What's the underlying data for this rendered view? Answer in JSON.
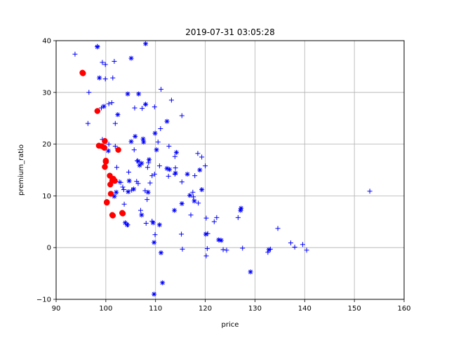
{
  "chart_data": {
    "type": "scatter",
    "title": "2019-07-31 03:05:28",
    "xlabel": "price",
    "ylabel": "premium_ratio",
    "xlim": [
      90,
      160
    ],
    "ylim": [
      -10,
      40
    ],
    "xticks": [
      90,
      100,
      110,
      120,
      130,
      140,
      150,
      160
    ],
    "yticks": [
      -10,
      0,
      10,
      20,
      30,
      40
    ],
    "xtick_labels": [
      "90",
      "100",
      "110",
      "120",
      "130",
      "140",
      "150",
      "160"
    ],
    "ytick_labels": [
      "−10",
      "0",
      "10",
      "20",
      "30",
      "40"
    ],
    "grid": true,
    "legend": false,
    "series": [
      {
        "marker": "plus",
        "color": "#0000ff",
        "points": [
          [
            93.8,
            37.4
          ],
          [
            96.6,
            30.0
          ],
          [
            96.4,
            24.0
          ],
          [
            98.3,
            38.9
          ],
          [
            99.3,
            35.8
          ],
          [
            99.9,
            35.4
          ],
          [
            99.9,
            32.6
          ],
          [
            99.1,
            27.0
          ],
          [
            99.3,
            20.9
          ],
          [
            100.6,
            27.8
          ],
          [
            101.2,
            28.0
          ],
          [
            101.4,
            32.8
          ],
          [
            101.7,
            36.0
          ],
          [
            101.9,
            24.0
          ],
          [
            100.6,
            20.0
          ],
          [
            101.9,
            19.6
          ],
          [
            102.2,
            15.5
          ],
          [
            103.0,
            12.6
          ],
          [
            103.6,
            11.2
          ],
          [
            104.6,
            14.6
          ],
          [
            105.7,
            18.9
          ],
          [
            106.3,
            16.8
          ],
          [
            106.2,
            12.8
          ],
          [
            105.8,
            27.0
          ],
          [
            107.3,
            26.9
          ],
          [
            108.0,
            27.7
          ],
          [
            109.8,
            27.2
          ],
          [
            108.6,
            16.4
          ],
          [
            108.4,
            15.5
          ],
          [
            107.9,
            11.0
          ],
          [
            107.0,
            7.2
          ],
          [
            108.1,
            4.7
          ],
          [
            109.3,
            13.9
          ],
          [
            109.8,
            14.2
          ],
          [
            108.9,
            12.5
          ],
          [
            108.3,
            9.3
          ],
          [
            109.3,
            5.1
          ],
          [
            109.9,
            2.5
          ],
          [
            110.8,
            15.8
          ],
          [
            110.5,
            20.4
          ],
          [
            111.0,
            23.0
          ],
          [
            111.1,
            30.6
          ],
          [
            112.7,
            19.6
          ],
          [
            112.6,
            13.8
          ],
          [
            113.2,
            28.5
          ],
          [
            115.3,
            25.5
          ],
          [
            113.9,
            17.6
          ],
          [
            113.9,
            14.2
          ],
          [
            114.0,
            15.4
          ],
          [
            115.3,
            12.7
          ],
          [
            115.2,
            2.6
          ],
          [
            115.4,
            -0.3
          ],
          [
            117.1,
            6.3
          ],
          [
            117.6,
            9.8
          ],
          [
            117.5,
            10.7
          ],
          [
            117.9,
            13.9
          ],
          [
            118.5,
            18.2
          ],
          [
            118.6,
            8.6
          ],
          [
            119.3,
            17.5
          ],
          [
            120.0,
            15.8
          ],
          [
            120.2,
            5.7
          ],
          [
            120.5,
            2.7
          ],
          [
            120.4,
            -0.2
          ],
          [
            120.2,
            -1.6
          ],
          [
            121.8,
            5.0
          ],
          [
            122.3,
            5.8
          ],
          [
            123.6,
            -0.4
          ],
          [
            124.3,
            -0.5
          ],
          [
            126.6,
            5.8
          ],
          [
            127.5,
            -0.1
          ],
          [
            132.6,
            -0.9
          ],
          [
            133.1,
            -0.3
          ],
          [
            134.6,
            3.7
          ],
          [
            137.2,
            0.9
          ],
          [
            138.0,
            0.1
          ],
          [
            139.6,
            0.6
          ],
          [
            140.4,
            -0.5
          ],
          [
            153.1,
            10.9
          ],
          [
            102.7,
            12.7
          ],
          [
            103.4,
            11.7
          ],
          [
            105.2,
            11.1
          ],
          [
            104.4,
            4.4
          ],
          [
            106.5,
            12.4
          ],
          [
            103.7,
            8.4
          ]
        ]
      },
      {
        "marker": "star",
        "color": "#0000ff",
        "points": [
          [
            98.3,
            38.8
          ],
          [
            98.7,
            32.8
          ],
          [
            99.6,
            27.3
          ],
          [
            99.8,
            20.7
          ],
          [
            100.5,
            18.7
          ],
          [
            102.4,
            25.7
          ],
          [
            104.4,
            29.7
          ],
          [
            106.6,
            29.7
          ],
          [
            105.1,
            36.6
          ],
          [
            108.0,
            39.4
          ],
          [
            108.0,
            27.7
          ],
          [
            109.9,
            22.1
          ],
          [
            110.2,
            18.9
          ],
          [
            112.3,
            24.4
          ],
          [
            105.1,
            20.5
          ],
          [
            105.9,
            21.5
          ],
          [
            107.5,
            21.0
          ],
          [
            107.6,
            20.4
          ],
          [
            107.2,
            16.3
          ],
          [
            106.8,
            15.9
          ],
          [
            108.7,
            17.0
          ],
          [
            112.3,
            15.3
          ],
          [
            114.2,
            18.4
          ],
          [
            114.0,
            14.4
          ],
          [
            116.4,
            14.2
          ],
          [
            118.9,
            15.0
          ],
          [
            119.3,
            11.2
          ],
          [
            117.8,
            9.0
          ],
          [
            116.9,
            10.1
          ],
          [
            115.3,
            8.5
          ],
          [
            113.8,
            7.2
          ],
          [
            110.8,
            4.4
          ],
          [
            109.5,
            4.8
          ],
          [
            109.7,
            1.0
          ],
          [
            111.1,
            -1.0
          ],
          [
            120.1,
            2.6
          ],
          [
            122.7,
            1.5
          ],
          [
            123.2,
            1.4
          ],
          [
            127.1,
            7.2
          ],
          [
            127.2,
            7.6
          ],
          [
            129.1,
            -4.7
          ],
          [
            132.8,
            -0.4
          ],
          [
            104.7,
            12.9
          ],
          [
            104.5,
            10.8
          ],
          [
            105.6,
            11.3
          ],
          [
            103.9,
            4.8
          ],
          [
            104.3,
            4.4
          ],
          [
            107.2,
            6.3
          ],
          [
            109.7,
            -9.0
          ],
          [
            111.4,
            -6.8
          ],
          [
            102.1,
            10.7
          ],
          [
            106.5,
            16.7
          ],
          [
            108.5,
            10.7
          ],
          [
            112.8,
            15.1
          ],
          [
            101.7,
            9.9
          ]
        ]
      },
      {
        "marker": "circle",
        "color": "#ff0000",
        "points": [
          [
            95.3,
            33.8
          ],
          [
            95.4,
            33.7
          ],
          [
            98.3,
            26.4
          ],
          [
            98.6,
            19.7
          ],
          [
            99.2,
            19.6
          ],
          [
            99.8,
            20.6
          ],
          [
            99.7,
            19.3
          ],
          [
            100.0,
            16.8
          ],
          [
            100.0,
            16.6
          ],
          [
            99.8,
            15.6
          ],
          [
            100.8,
            13.9
          ],
          [
            101.5,
            13.3
          ],
          [
            101.3,
            13.0
          ],
          [
            101.8,
            12.9
          ],
          [
            100.9,
            12.2
          ],
          [
            101.0,
            10.4
          ],
          [
            100.2,
            8.8
          ],
          [
            100.2,
            8.7
          ],
          [
            101.3,
            6.3
          ],
          [
            101.4,
            6.2
          ],
          [
            102.5,
            18.9
          ],
          [
            103.3,
            6.7
          ],
          [
            103.4,
            6.6
          ],
          [
            101.4,
            13.1
          ]
        ]
      }
    ]
  }
}
